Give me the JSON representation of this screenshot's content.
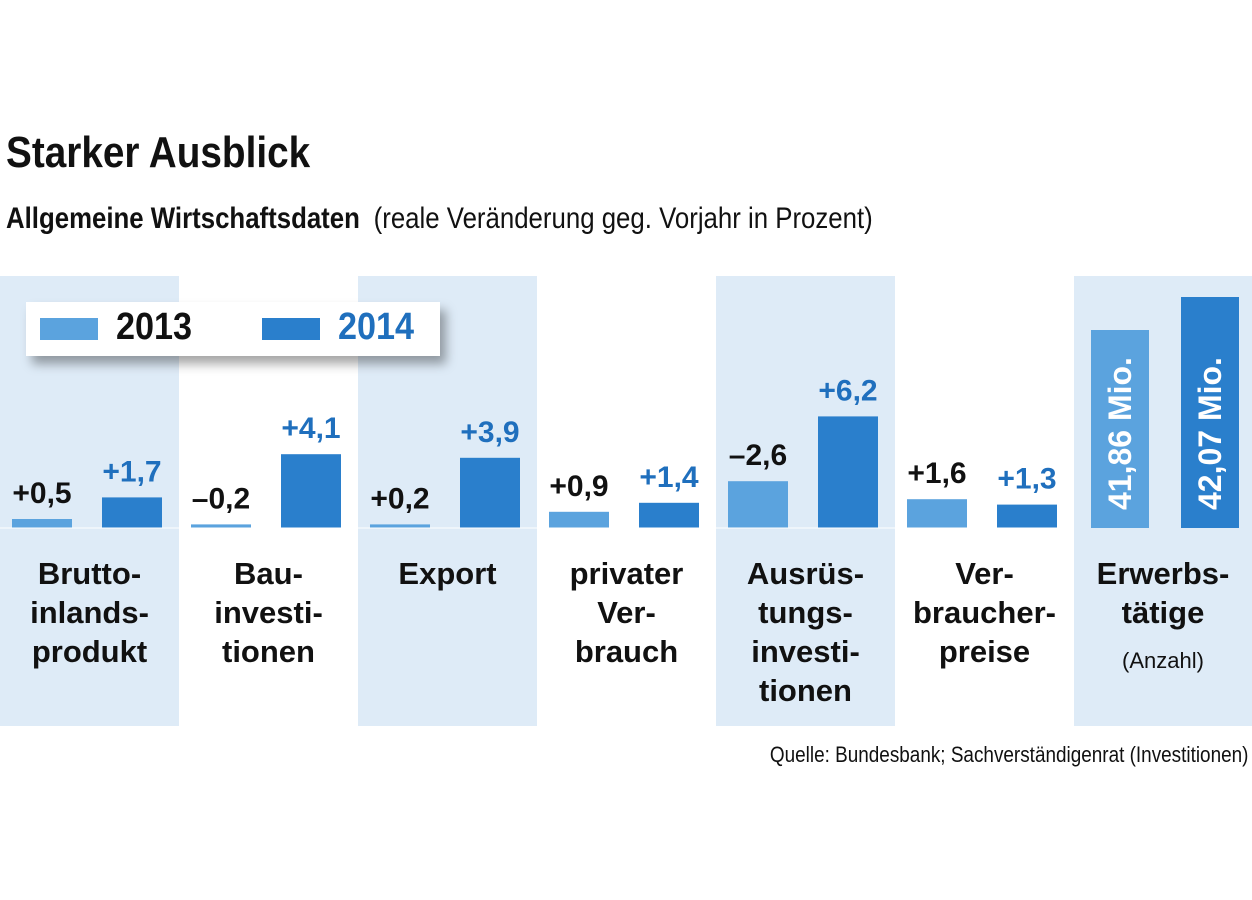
{
  "title": "Starker Ausblick",
  "subtitle_bold": "Allgemeine Wirtschaftsdaten",
  "subtitle_light": "(reale Veränderung geg. Vorjahr in Prozent)",
  "source": "Quelle: Bundesbank; Sachverständigenrat (Investitionen)",
  "colors": {
    "s2013": "#5ba3de",
    "s2014": "#2a7fcc",
    "band": "#deebf7",
    "label2014": "#1f6fbd",
    "label2013": "#111111"
  },
  "chart_data": {
    "type": "bar",
    "title": "Starker Ausblick",
    "subtitle": "Allgemeine Wirtschaftsdaten (reale Veränderung geg. Vorjahr in Prozent)",
    "legend_position": "top-left",
    "series": [
      {
        "name": "2013",
        "values": [
          0.5,
          -0.2,
          0.2,
          0.9,
          -2.6,
          1.6
        ],
        "labels": [
          "+0,5",
          "–0,2",
          "+0,2",
          "+0,9",
          "–2,6",
          "+1,6"
        ]
      },
      {
        "name": "2014",
        "values": [
          1.7,
          4.1,
          3.9,
          1.4,
          6.2,
          1.3
        ],
        "labels": [
          "+1,7",
          "+4,1",
          "+3,9",
          "+1,4",
          "+6,2",
          "+1,3"
        ]
      }
    ],
    "categories": [
      {
        "lines": [
          "Brutto-",
          "inlands-",
          "produkt"
        ],
        "shaded": true
      },
      {
        "lines": [
          "Bau-",
          "investi-",
          "tionen"
        ],
        "shaded": false
      },
      {
        "lines": [
          "Export"
        ],
        "shaded": true
      },
      {
        "lines": [
          "privater",
          "Ver-",
          "brauch"
        ],
        "shaded": false
      },
      {
        "lines": [
          "Ausrüs-",
          "tungs-",
          "investi-",
          "tionen"
        ],
        "shaded": true
      },
      {
        "lines": [
          "Ver-",
          "braucher-",
          "preise"
        ],
        "shaded": false
      }
    ],
    "employment": {
      "category_lines": [
        "Erwerbs-",
        "tätige"
      ],
      "unit_note": "(Anzahl)",
      "values": [
        41.86,
        42.07
      ],
      "labels": [
        "41,86 Mio.",
        "42,07 Mio."
      ]
    }
  }
}
